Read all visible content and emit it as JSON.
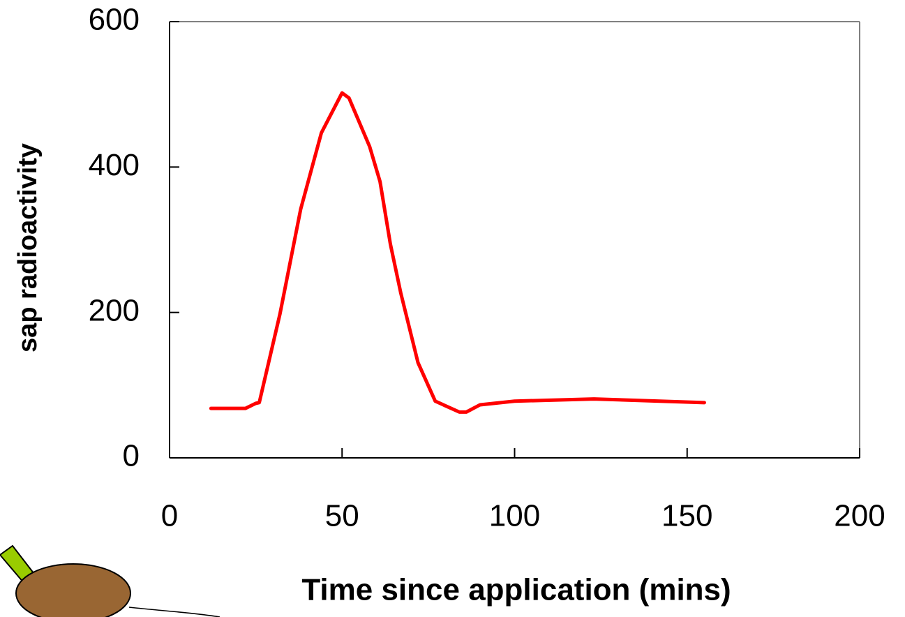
{
  "chart_data": {
    "type": "line",
    "x_label": "Time since  application (mins)",
    "y_label": "sap radioactivity",
    "x": [
      12,
      22,
      25,
      26,
      32,
      38,
      44,
      50,
      52,
      58,
      61,
      64,
      67,
      72,
      77,
      84,
      86,
      90,
      100,
      123,
      155
    ],
    "series": [
      {
        "color": "#ff0000",
        "values": [
          68,
          68,
          75,
          76,
          198,
          342,
          447,
          502,
          495,
          428,
          380,
          294,
          227,
          131,
          78,
          63,
          63,
          73,
          78,
          81,
          76
        ]
      }
    ],
    "xlim": [
      0,
      200
    ],
    "xticks": [
      0,
      50,
      100,
      150,
      200
    ],
    "ylim": [
      0,
      600
    ],
    "yticks": [
      0,
      200,
      400,
      600
    ]
  }
}
